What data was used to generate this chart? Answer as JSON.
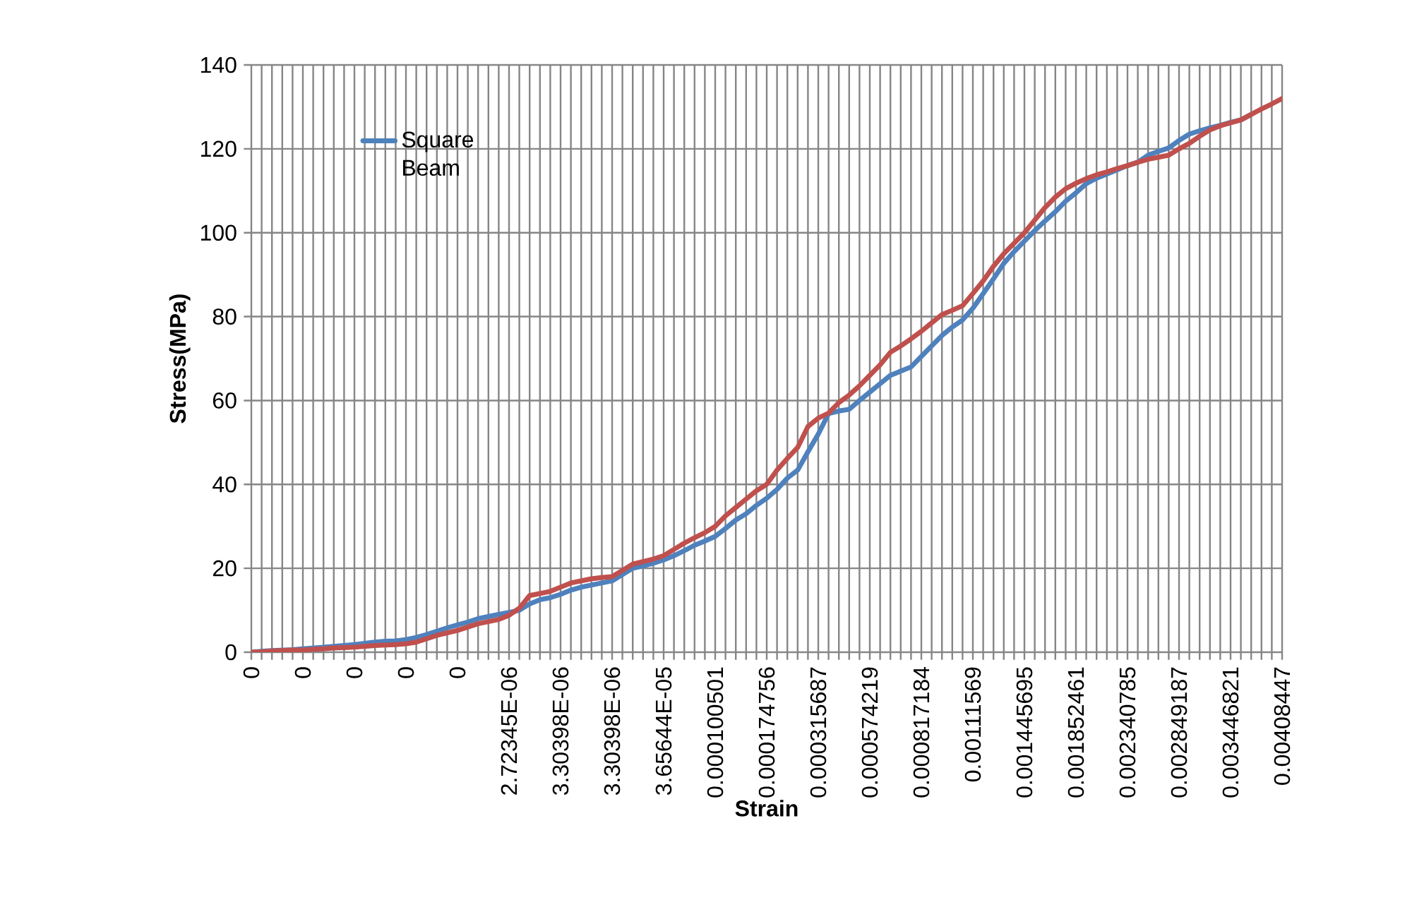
{
  "chart_data": {
    "type": "line",
    "xlabel": "Strain",
    "ylabel": "Stress(MPa)",
    "categories": [
      "0",
      null,
      null,
      null,
      null,
      "0",
      null,
      null,
      null,
      null,
      "0",
      null,
      null,
      null,
      null,
      "0",
      null,
      null,
      null,
      null,
      "0",
      null,
      null,
      null,
      null,
      "2.72345E-06",
      null,
      null,
      null,
      null,
      "3.30398E-06",
      null,
      null,
      null,
      null,
      "3.30398E-06",
      null,
      null,
      null,
      null,
      "3.65644E-05",
      null,
      null,
      null,
      null,
      "0.000100501",
      null,
      null,
      null,
      null,
      "0.000174756",
      null,
      null,
      null,
      null,
      "0.000315687",
      null,
      null,
      null,
      null,
      "0.000574219",
      null,
      null,
      null,
      null,
      "0.000817184",
      null,
      null,
      null,
      null,
      "0.00111569",
      null,
      null,
      null,
      null,
      "0.001445695",
      null,
      null,
      null,
      null,
      "0.001852461",
      null,
      null,
      null,
      null,
      "0.002340785",
      null,
      null,
      null,
      null,
      "0.002849187",
      null,
      null,
      null,
      null,
      "0.003446821",
      null,
      null,
      null,
      null,
      "0.00408447"
    ],
    "series": [
      {
        "name": "Square Beam",
        "color": "#4f81bd",
        "values": [
          0,
          0.2,
          0.4,
          0.5,
          0.6,
          0.8,
          1,
          1.2,
          1.4,
          1.6,
          1.8,
          2.1,
          2.4,
          2.6,
          2.7,
          3,
          3.5,
          4.2,
          5,
          5.8,
          6.5,
          7.2,
          8,
          8.5,
          9,
          9.5,
          10,
          11.5,
          12.5,
          13,
          13.8,
          14.8,
          15.5,
          16,
          16.5,
          17,
          18.5,
          20,
          20.6,
          21.2,
          22,
          23,
          24.2,
          25.5,
          26.5,
          27.6,
          29.5,
          31.5,
          33,
          35,
          36.7,
          38.8,
          41.5,
          43.4,
          47.8,
          52,
          56.9,
          57.5,
          57.9,
          60,
          62,
          64,
          66,
          67,
          68,
          70.5,
          73,
          75.5,
          77.5,
          79.2,
          82,
          85.5,
          89,
          92.7,
          95.5,
          98,
          100.5,
          102.8,
          105,
          107.5,
          109.5,
          111.7,
          113,
          114,
          115,
          116,
          116.8,
          118.5,
          119.4,
          120.2,
          122,
          123.5,
          124.3,
          125,
          125.6,
          126.3,
          126.9,
          128.2,
          null,
          null,
          null
        ]
      },
      {
        "color": "#c0504d",
        "values": [
          0,
          0.1,
          0.3,
          0.4,
          0.5,
          0.5,
          0.7,
          0.8,
          1,
          1.1,
          1.2,
          1.4,
          1.6,
          1.7,
          1.8,
          2,
          2.4,
          3.2,
          4,
          4.6,
          5.2,
          6,
          6.8,
          7.3,
          7.8,
          8.8,
          10.5,
          13.5,
          14,
          14.5,
          15.5,
          16.5,
          17,
          17.5,
          17.8,
          18,
          19.5,
          21,
          21.6,
          22.2,
          23,
          24.5,
          26,
          27.3,
          28.5,
          30,
          32.5,
          34.5,
          36.5,
          38.5,
          40,
          43.4,
          46.2,
          48.8,
          53.8,
          55.8,
          57,
          59.5,
          61.3,
          63.5,
          66,
          68.5,
          71.5,
          73,
          74.7,
          76.5,
          78.5,
          80.5,
          81.5,
          82.6,
          85.5,
          88.5,
          92,
          95,
          97.5,
          100,
          103,
          106,
          108.5,
          110.5,
          111.8,
          112.9,
          113.8,
          114.5,
          115.3,
          116,
          116.8,
          117.5,
          118,
          118.5,
          120,
          121.3,
          123,
          124.5,
          125.5,
          126.2,
          126.9,
          128.2,
          129.5,
          130.7,
          132
        ]
      }
    ],
    "ylim": [
      0,
      140
    ],
    "yticks": [
      0,
      20,
      40,
      60,
      80,
      100,
      120,
      140
    ],
    "grid": true,
    "legend": "top left",
    "marker": "none",
    "line_style": "solid"
  }
}
